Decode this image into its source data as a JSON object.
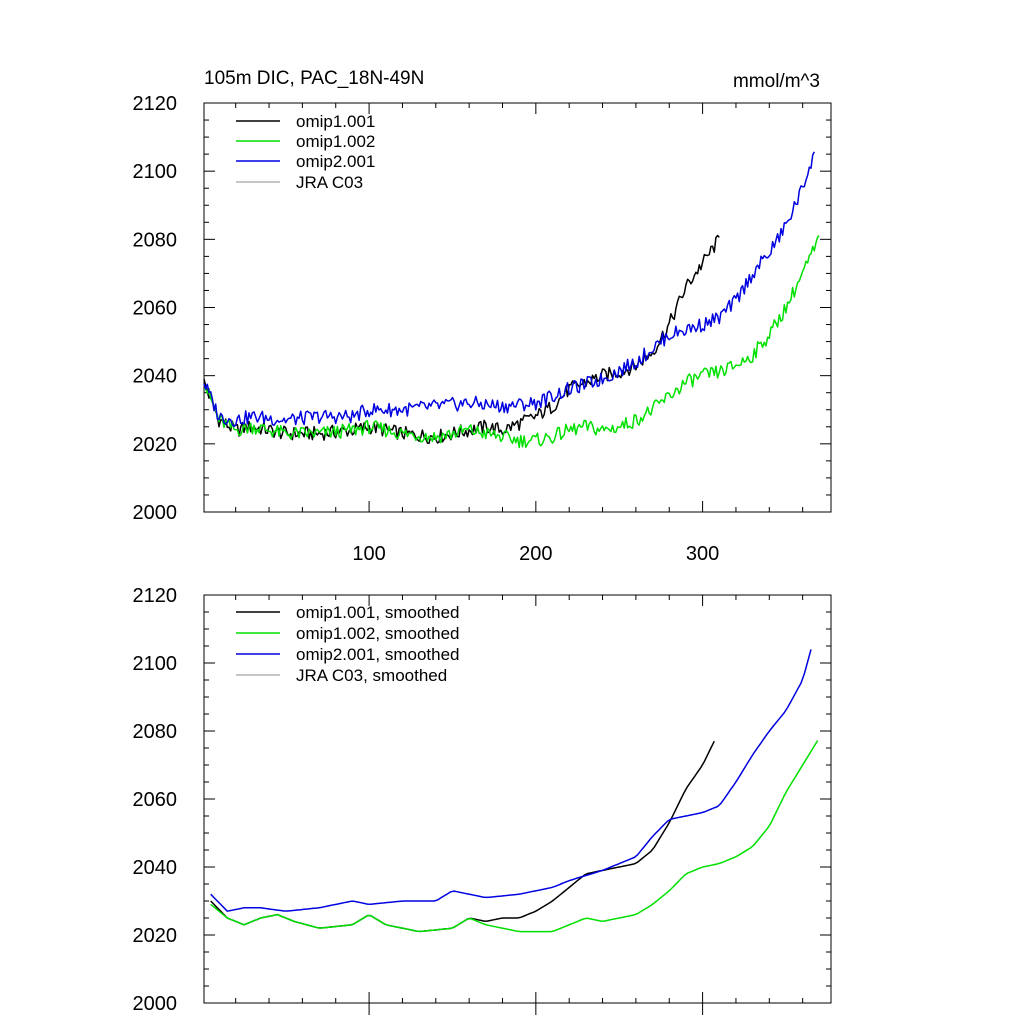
{
  "colors": {
    "omip1_001": "#000000",
    "omip1_002": "#00e000",
    "omip2_001": "#0000e0",
    "jra_c03": "#b4b4b4"
  },
  "chart_data": [
    {
      "type": "line",
      "title": "105m DIC, PAC_18N-49N",
      "units": "mmol/m^3",
      "xlim": [
        1,
        377
      ],
      "ylim": [
        2000,
        2120
      ],
      "yticks": [
        "2000",
        "2020",
        "2040",
        "2060",
        "2080",
        "2100",
        "2120"
      ],
      "xticks": [
        "100",
        "200",
        "300"
      ],
      "legend": [
        "omip1.001",
        "omip1.002",
        "omip2.001",
        "JRA C03"
      ],
      "legend_position": "top-left",
      "series": [
        {
          "name": "omip1.001",
          "points": [
            [
              1,
              2038
            ],
            [
              10,
              2027
            ],
            [
              20,
              2024
            ],
            [
              30,
              2025
            ],
            [
              50,
              2023
            ],
            [
              70,
              2023
            ],
            [
              90,
              2024
            ],
            [
              100,
              2025
            ],
            [
              120,
              2023
            ],
            [
              140,
              2022
            ],
            [
              160,
              2024
            ],
            [
              170,
              2025
            ],
            [
              180,
              2024
            ],
            [
              190,
              2026
            ],
            [
              200,
              2028
            ],
            [
              210,
              2031
            ],
            [
              220,
              2036
            ],
            [
              230,
              2038
            ],
            [
              240,
              2040
            ],
            [
              250,
              2041
            ],
            [
              260,
              2043
            ],
            [
              270,
              2047
            ],
            [
              280,
              2055
            ],
            [
              290,
              2066
            ],
            [
              300,
              2073
            ],
            [
              310,
              2080
            ]
          ]
        },
        {
          "name": "omip1.002",
          "points": [
            [
              1,
              2038
            ],
            [
              10,
              2027
            ],
            [
              20,
              2024
            ],
            [
              30,
              2025
            ],
            [
              50,
              2023
            ],
            [
              70,
              2023
            ],
            [
              90,
              2024
            ],
            [
              100,
              2025
            ],
            [
              120,
              2023
            ],
            [
              140,
              2022
            ],
            [
              160,
              2024
            ],
            [
              170,
              2023
            ],
            [
              180,
              2022
            ],
            [
              190,
              2021
            ],
            [
              200,
              2021
            ],
            [
              210,
              2022
            ],
            [
              220,
              2024
            ],
            [
              230,
              2025
            ],
            [
              240,
              2024
            ],
            [
              250,
              2025
            ],
            [
              260,
              2027
            ],
            [
              270,
              2030
            ],
            [
              280,
              2034
            ],
            [
              290,
              2038
            ],
            [
              300,
              2040
            ],
            [
              310,
              2041
            ],
            [
              320,
              2043
            ],
            [
              330,
              2046
            ],
            [
              340,
              2052
            ],
            [
              350,
              2060
            ],
            [
              360,
              2070
            ],
            [
              370,
              2080
            ]
          ]
        },
        {
          "name": "omip2.001",
          "points": [
            [
              1,
              2038
            ],
            [
              10,
              2028
            ],
            [
              20,
              2027
            ],
            [
              30,
              2028
            ],
            [
              50,
              2027
            ],
            [
              70,
              2028
            ],
            [
              90,
              2028
            ],
            [
              100,
              2030
            ],
            [
              120,
              2030
            ],
            [
              140,
              2031
            ],
            [
              160,
              2032
            ],
            [
              180,
              2031
            ],
            [
              200,
              2032
            ],
            [
              220,
              2036
            ],
            [
              240,
              2039
            ],
            [
              260,
              2044
            ],
            [
              270,
              2048
            ],
            [
              280,
              2052
            ],
            [
              300,
              2055
            ],
            [
              310,
              2057
            ],
            [
              320,
              2062
            ],
            [
              330,
              2070
            ],
            [
              340,
              2076
            ],
            [
              350,
              2084
            ],
            [
              360,
              2095
            ],
            [
              367,
              2106
            ]
          ]
        }
      ]
    },
    {
      "type": "line",
      "xlim": [
        1,
        377
      ],
      "ylim": [
        2000,
        2120
      ],
      "yticks": [
        "2000",
        "2020",
        "2040",
        "2060",
        "2080",
        "2100",
        "2120"
      ],
      "legend": [
        "omip1.001, smoothed",
        "omip1.002, smoothed",
        "omip2.001, smoothed",
        "JRA C03, smoothed"
      ],
      "legend_position": "top-left",
      "series": [
        {
          "name": "omip1.001, smoothed",
          "points": [
            [
              5,
              2030
            ],
            [
              15,
              2025
            ],
            [
              25,
              2023
            ],
            [
              35,
              2025
            ],
            [
              45,
              2026
            ],
            [
              55,
              2024
            ],
            [
              70,
              2022
            ],
            [
              90,
              2023
            ],
            [
              100,
              2026
            ],
            [
              110,
              2023
            ],
            [
              130,
              2021
            ],
            [
              150,
              2022
            ],
            [
              160,
              2025
            ],
            [
              170,
              2024
            ],
            [
              180,
              2025
            ],
            [
              190,
              2025
            ],
            [
              200,
              2027
            ],
            [
              210,
              2030
            ],
            [
              220,
              2034
            ],
            [
              230,
              2038
            ],
            [
              240,
              2039
            ],
            [
              250,
              2040
            ],
            [
              260,
              2041
            ],
            [
              270,
              2045
            ],
            [
              280,
              2053
            ],
            [
              290,
              2063
            ],
            [
              300,
              2070
            ],
            [
              308,
              2078
            ]
          ]
        },
        {
          "name": "omip1.002, smoothed",
          "points": [
            [
              5,
              2029
            ],
            [
              15,
              2025
            ],
            [
              25,
              2023
            ],
            [
              35,
              2025
            ],
            [
              45,
              2026
            ],
            [
              55,
              2024
            ],
            [
              70,
              2022
            ],
            [
              90,
              2023
            ],
            [
              100,
              2026
            ],
            [
              110,
              2023
            ],
            [
              130,
              2021
            ],
            [
              150,
              2022
            ],
            [
              160,
              2025
            ],
            [
              170,
              2023
            ],
            [
              180,
              2022
            ],
            [
              190,
              2021
            ],
            [
              200,
              2021
            ],
            [
              210,
              2021
            ],
            [
              220,
              2023
            ],
            [
              230,
              2025
            ],
            [
              240,
              2024
            ],
            [
              250,
              2025
            ],
            [
              260,
              2026
            ],
            [
              270,
              2029
            ],
            [
              280,
              2033
            ],
            [
              290,
              2038
            ],
            [
              300,
              2040
            ],
            [
              310,
              2041
            ],
            [
              320,
              2043
            ],
            [
              330,
              2046
            ],
            [
              340,
              2052
            ],
            [
              350,
              2062
            ],
            [
              360,
              2070
            ],
            [
              370,
              2078
            ]
          ]
        },
        {
          "name": "omip2.001, smoothed",
          "points": [
            [
              5,
              2032
            ],
            [
              15,
              2027
            ],
            [
              25,
              2028
            ],
            [
              35,
              2028
            ],
            [
              50,
              2027
            ],
            [
              70,
              2028
            ],
            [
              90,
              2030
            ],
            [
              100,
              2029
            ],
            [
              120,
              2030
            ],
            [
              140,
              2030
            ],
            [
              150,
              2033
            ],
            [
              170,
              2031
            ],
            [
              190,
              2032
            ],
            [
              210,
              2034
            ],
            [
              220,
              2036
            ],
            [
              240,
              2039
            ],
            [
              260,
              2043
            ],
            [
              270,
              2049
            ],
            [
              280,
              2054
            ],
            [
              300,
              2056
            ],
            [
              310,
              2058
            ],
            [
              320,
              2065
            ],
            [
              330,
              2073
            ],
            [
              340,
              2080
            ],
            [
              350,
              2086
            ],
            [
              360,
              2095
            ],
            [
              365,
              2104
            ]
          ]
        }
      ]
    }
  ]
}
